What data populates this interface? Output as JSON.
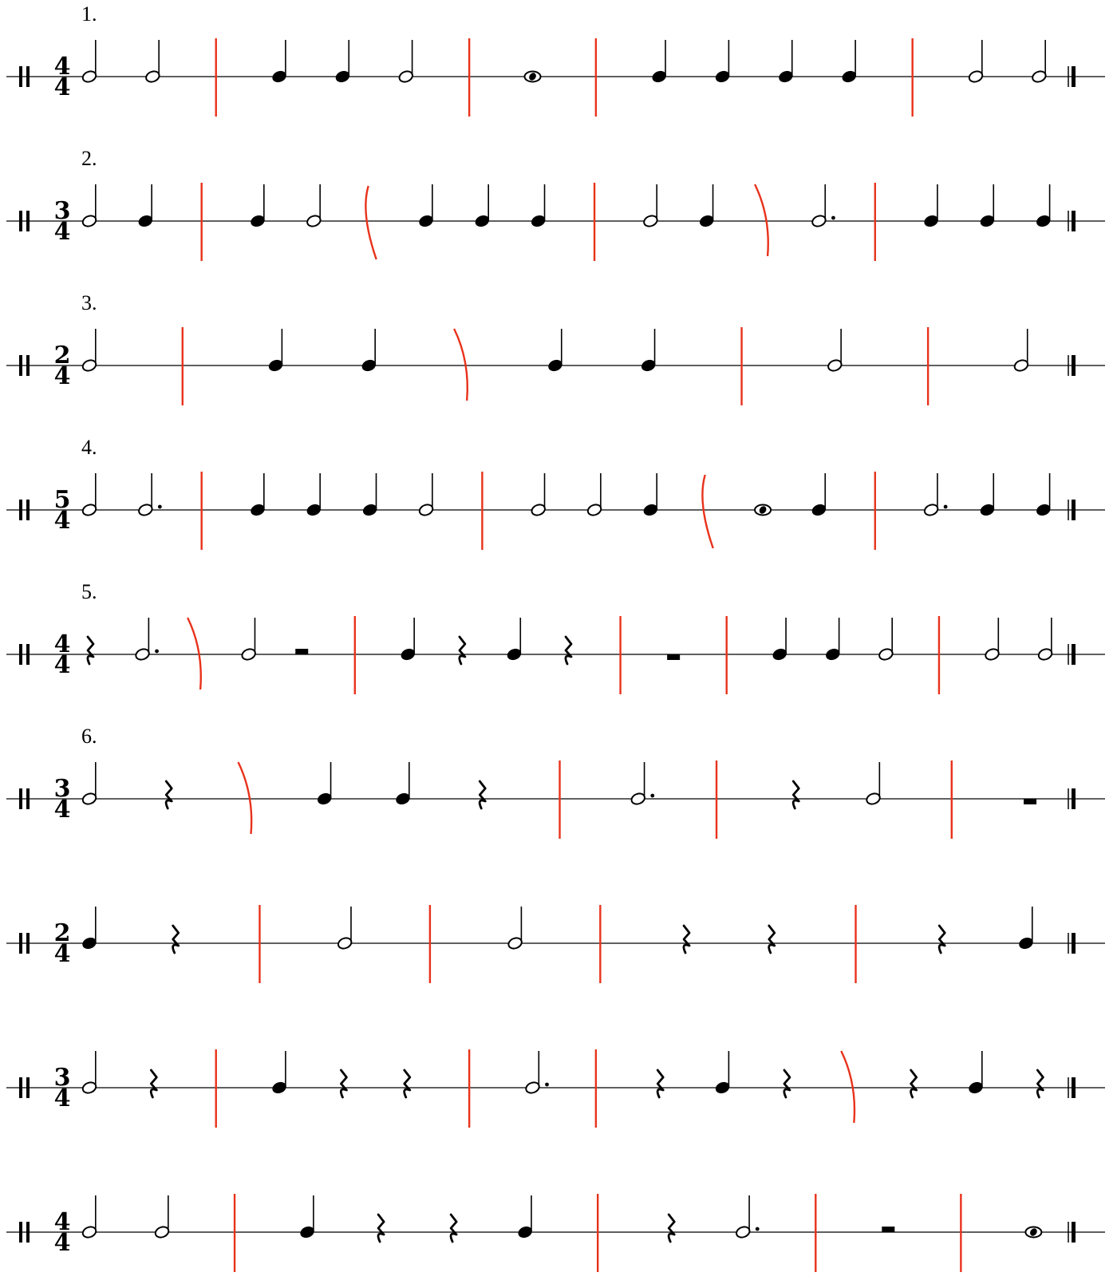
{
  "colors": {
    "ink": "#000000",
    "barline": "#e8321b"
  },
  "exercises": [
    {
      "label": "1.",
      "time_signature": {
        "top": "4",
        "bottom": "4"
      },
      "marks": [
        [
          "note",
          "h"
        ],
        [
          "note",
          "h"
        ],
        [
          "bar",
          "s"
        ],
        [
          "note",
          "q"
        ],
        [
          "note",
          "q"
        ],
        [
          "note",
          "h"
        ],
        [
          "bar",
          "s"
        ],
        [
          "note",
          "w"
        ],
        [
          "bar",
          "s"
        ],
        [
          "note",
          "q"
        ],
        [
          "note",
          "q"
        ],
        [
          "note",
          "q"
        ],
        [
          "note",
          "q"
        ],
        [
          "bar",
          "s"
        ],
        [
          "note",
          "h"
        ],
        [
          "note",
          "h"
        ]
      ]
    },
    {
      "label": "2.",
      "time_signature": {
        "top": "3",
        "bottom": "4"
      },
      "marks": [
        [
          "note",
          "h"
        ],
        [
          "note",
          "q"
        ],
        [
          "bar",
          "s"
        ],
        [
          "note",
          "q"
        ],
        [
          "note",
          "h"
        ],
        [
          "bar",
          "cl"
        ],
        [
          "note",
          "q"
        ],
        [
          "note",
          "q"
        ],
        [
          "note",
          "q"
        ],
        [
          "bar",
          "s"
        ],
        [
          "note",
          "h"
        ],
        [
          "note",
          "q"
        ],
        [
          "bar",
          "cr"
        ],
        [
          "note",
          "hd"
        ],
        [
          "bar",
          "s"
        ],
        [
          "note",
          "q"
        ],
        [
          "note",
          "q"
        ],
        [
          "note",
          "q"
        ]
      ]
    },
    {
      "label": "3.",
      "time_signature": {
        "top": "2",
        "bottom": "4"
      },
      "marks": [
        [
          "note",
          "h"
        ],
        [
          "bar",
          "s"
        ],
        [
          "note",
          "q"
        ],
        [
          "note",
          "q"
        ],
        [
          "bar",
          "cr"
        ],
        [
          "note",
          "q"
        ],
        [
          "note",
          "q"
        ],
        [
          "bar",
          "s"
        ],
        [
          "note",
          "h"
        ],
        [
          "bar",
          "s"
        ],
        [
          "note",
          "h"
        ]
      ]
    },
    {
      "label": "4.",
      "time_signature": {
        "top": "5",
        "bottom": "4"
      },
      "marks": [
        [
          "note",
          "h"
        ],
        [
          "note",
          "hd"
        ],
        [
          "bar",
          "s"
        ],
        [
          "note",
          "q"
        ],
        [
          "note",
          "q"
        ],
        [
          "note",
          "q"
        ],
        [
          "note",
          "h"
        ],
        [
          "bar",
          "s"
        ],
        [
          "note",
          "h"
        ],
        [
          "note",
          "h"
        ],
        [
          "note",
          "q"
        ],
        [
          "bar",
          "cl"
        ],
        [
          "note",
          "w"
        ],
        [
          "note",
          "q"
        ],
        [
          "bar",
          "s"
        ],
        [
          "note",
          "hd"
        ],
        [
          "note",
          "q"
        ],
        [
          "note",
          "q"
        ]
      ]
    },
    {
      "label": "5.",
      "time_signature": {
        "top": "4",
        "bottom": "4"
      },
      "marks": [
        [
          "rest",
          "q"
        ],
        [
          "note",
          "hd"
        ],
        [
          "bar",
          "cr"
        ],
        [
          "note",
          "h"
        ],
        [
          "rest",
          "h"
        ],
        [
          "bar",
          "s"
        ],
        [
          "note",
          "q"
        ],
        [
          "rest",
          "q"
        ],
        [
          "note",
          "q"
        ],
        [
          "rest",
          "q"
        ],
        [
          "bar",
          "s"
        ],
        [
          "rest",
          "w"
        ],
        [
          "bar",
          "s"
        ],
        [
          "note",
          "q"
        ],
        [
          "note",
          "q"
        ],
        [
          "note",
          "h"
        ],
        [
          "bar",
          "s"
        ],
        [
          "note",
          "h"
        ],
        [
          "note",
          "h"
        ]
      ]
    },
    {
      "label": "6.",
      "time_signature": {
        "top": "3",
        "bottom": "4"
      },
      "marks": [
        [
          "note",
          "h"
        ],
        [
          "rest",
          "q"
        ],
        [
          "bar",
          "cr"
        ],
        [
          "note",
          "q"
        ],
        [
          "note",
          "q"
        ],
        [
          "rest",
          "q"
        ],
        [
          "bar",
          "s"
        ],
        [
          "note",
          "hd"
        ],
        [
          "bar",
          "s"
        ],
        [
          "rest",
          "q"
        ],
        [
          "note",
          "h"
        ],
        [
          "bar",
          "s"
        ],
        [
          "rest",
          "w"
        ]
      ]
    },
    {
      "label": "",
      "time_signature": {
        "top": "2",
        "bottom": "4"
      },
      "marks": [
        [
          "note",
          "q"
        ],
        [
          "rest",
          "q"
        ],
        [
          "bar",
          "s"
        ],
        [
          "note",
          "h"
        ],
        [
          "bar",
          "s"
        ],
        [
          "note",
          "h"
        ],
        [
          "bar",
          "s"
        ],
        [
          "rest",
          "q"
        ],
        [
          "rest",
          "q"
        ],
        [
          "bar",
          "s"
        ],
        [
          "rest",
          "q"
        ],
        [
          "note",
          "q"
        ]
      ]
    },
    {
      "label": "",
      "time_signature": {
        "top": "3",
        "bottom": "4"
      },
      "marks": [
        [
          "note",
          "h"
        ],
        [
          "rest",
          "q"
        ],
        [
          "bar",
          "s"
        ],
        [
          "note",
          "q"
        ],
        [
          "rest",
          "q"
        ],
        [
          "rest",
          "q"
        ],
        [
          "bar",
          "s"
        ],
        [
          "note",
          "hd"
        ],
        [
          "bar",
          "s"
        ],
        [
          "rest",
          "q"
        ],
        [
          "note",
          "q"
        ],
        [
          "rest",
          "q"
        ],
        [
          "bar",
          "cr"
        ],
        [
          "rest",
          "q"
        ],
        [
          "note",
          "q"
        ],
        [
          "rest",
          "q"
        ]
      ]
    },
    {
      "label": "",
      "time_signature": {
        "top": "4",
        "bottom": "4"
      },
      "marks": [
        [
          "note",
          "h"
        ],
        [
          "note",
          "h"
        ],
        [
          "bar",
          "s"
        ],
        [
          "note",
          "q"
        ],
        [
          "rest",
          "q"
        ],
        [
          "rest",
          "q"
        ],
        [
          "note",
          "q"
        ],
        [
          "bar",
          "s"
        ],
        [
          "rest",
          "q"
        ],
        [
          "note",
          "hd"
        ],
        [
          "bar",
          "s"
        ],
        [
          "rest",
          "h"
        ],
        [
          "bar",
          "s"
        ],
        [
          "note",
          "w"
        ]
      ]
    }
  ]
}
